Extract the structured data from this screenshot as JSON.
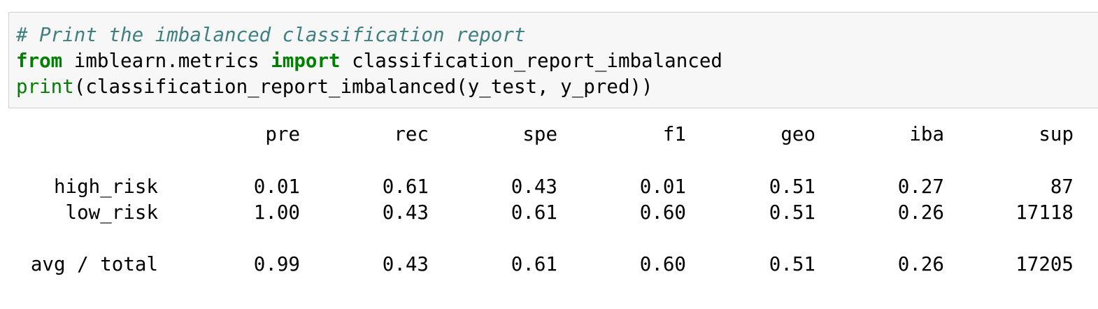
{
  "code": {
    "line1": {
      "comment": "# Print the imbalanced classification report"
    },
    "line2": {
      "kw_from": "from",
      "module": " imblearn.metrics ",
      "kw_import": "import",
      "name": " classification_report_imbalanced"
    },
    "line3": {
      "builtin": "print",
      "rest": "(classification_report_imbalanced(y_test, y_pred))"
    }
  },
  "report": {
    "headers": [
      "pre",
      "rec",
      "spe",
      "f1",
      "geo",
      "iba",
      "sup"
    ],
    "rows": [
      {
        "label": "high_risk",
        "values": [
          "0.01",
          "0.61",
          "0.43",
          "0.01",
          "0.51",
          "0.27",
          "87"
        ]
      },
      {
        "label": "low_risk",
        "values": [
          "1.00",
          "0.43",
          "0.61",
          "0.60",
          "0.51",
          "0.26",
          "17118"
        ]
      }
    ],
    "total": {
      "label": "avg / total",
      "values": [
        "0.99",
        "0.43",
        "0.61",
        "0.60",
        "0.51",
        "0.26",
        "17205"
      ]
    }
  }
}
